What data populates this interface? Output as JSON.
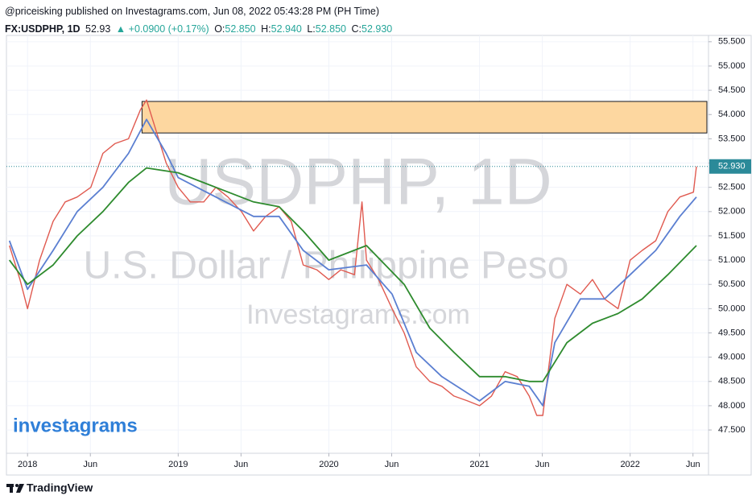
{
  "chart_data": {
    "type": "line",
    "published": "@priceisking published on Investagrams.com, Jun 08, 2022 05:43:28 PM (PH Time)",
    "header": {
      "symbol": "FX:USDPHP, 1D",
      "last": "52.93",
      "change": "▲ +0.0900 (+0.17%)",
      "o_label": "O:",
      "open": "52.850",
      "h_label": "H:",
      "high": "52.940",
      "l_label": "L:",
      "low": "52.850",
      "c_label": "C:",
      "close": "52.930"
    },
    "watermark": {
      "symbol": "USDPHP, 1D",
      "name": "U.S. Dollar / Philippine Peso",
      "site": "Investagrams.com"
    },
    "logo": "investagrams",
    "footer": "TradingView",
    "xlim": [
      2017.86,
      2022.52
    ],
    "ylim": [
      47.02,
      55.63
    ],
    "xticks": [
      {
        "value": 2018,
        "label": "2018"
      },
      {
        "value": 2018.417,
        "label": "Jun"
      },
      {
        "value": 2019,
        "label": "2019"
      },
      {
        "value": 2019.417,
        "label": "Jun"
      },
      {
        "value": 2020,
        "label": "2020"
      },
      {
        "value": 2020.417,
        "label": "Jun"
      },
      {
        "value": 2021,
        "label": "2021"
      },
      {
        "value": 2021.417,
        "label": "Jun"
      },
      {
        "value": 2022,
        "label": "2022"
      },
      {
        "value": 2022.417,
        "label": "Jun"
      }
    ],
    "yticks": [
      {
        "value": 47.5,
        "label": "47.500"
      },
      {
        "value": 48,
        "label": "48.000"
      },
      {
        "value": 48.5,
        "label": "48.500"
      },
      {
        "value": 49,
        "label": "49.000"
      },
      {
        "value": 49.5,
        "label": "49.500"
      },
      {
        "value": 50,
        "label": "50.000"
      },
      {
        "value": 50.5,
        "label": "50.500"
      },
      {
        "value": 51,
        "label": "51.000"
      },
      {
        "value": 51.5,
        "label": "51.500"
      },
      {
        "value": 52,
        "label": "52.000"
      },
      {
        "value": 52.5,
        "label": "52.500"
      },
      {
        "value": 53,
        "label": "53.000"
      },
      {
        "value": 53.5,
        "label": "53.500"
      },
      {
        "value": 54,
        "label": "54.000"
      },
      {
        "value": 54.5,
        "label": "54.500"
      },
      {
        "value": 55,
        "label": "55.000"
      },
      {
        "value": 55.5,
        "label": "55.500"
      }
    ],
    "grid": true,
    "last_price": {
      "value": 52.93,
      "label": "52.930",
      "color": "#2b8a99"
    },
    "zone": {
      "x": 2018.76,
      "low": 53.62,
      "high": 54.27,
      "fill": "#fdd7a0"
    },
    "series": [
      {
        "color": "#e05a50",
        "x": [
          2017.88,
          2017.95,
          2018.0,
          2018.08,
          2018.17,
          2018.25,
          2018.33,
          2018.42,
          2018.5,
          2018.58,
          2018.67,
          2018.75,
          2018.79,
          2018.83,
          2018.92,
          2019.0,
          2019.08,
          2019.17,
          2019.25,
          2019.33,
          2019.42,
          2019.5,
          2019.58,
          2019.67,
          2019.75,
          2019.83,
          2019.92,
          2020.0,
          2020.08,
          2020.17,
          2020.22,
          2020.25,
          2020.33,
          2020.42,
          2020.5,
          2020.58,
          2020.67,
          2020.75,
          2020.83,
          2020.92,
          2021.0,
          2021.08,
          2021.17,
          2021.25,
          2021.33,
          2021.38,
          2021.42,
          2021.5,
          2021.58,
          2021.67,
          2021.75,
          2021.83,
          2021.92,
          2022.0,
          2022.08,
          2022.17,
          2022.25,
          2022.33,
          2022.42,
          2022.44
        ],
        "values": [
          51.3,
          50.6,
          50.0,
          51.0,
          51.8,
          52.2,
          52.3,
          52.5,
          53.2,
          53.4,
          53.5,
          54.1,
          54.3,
          53.9,
          53.0,
          52.5,
          52.2,
          52.2,
          52.5,
          52.3,
          52.0,
          51.6,
          51.9,
          52.1,
          51.8,
          50.9,
          50.8,
          50.6,
          50.8,
          50.7,
          52.2,
          51.0,
          50.6,
          50.0,
          49.5,
          48.8,
          48.5,
          48.4,
          48.2,
          48.1,
          48.0,
          48.2,
          48.7,
          48.6,
          48.2,
          47.8,
          47.8,
          49.8,
          50.5,
          50.3,
          50.6,
          50.2,
          50.0,
          51.0,
          51.2,
          51.4,
          52.0,
          52.3,
          52.4,
          52.93
        ]
      },
      {
        "color": "#5b7fd1",
        "x": [
          2017.88,
          2018.0,
          2018.17,
          2018.33,
          2018.5,
          2018.67,
          2018.79,
          2018.92,
          2019.0,
          2019.25,
          2019.5,
          2019.67,
          2019.83,
          2020.0,
          2020.25,
          2020.42,
          2020.58,
          2020.75,
          2021.0,
          2021.17,
          2021.33,
          2021.42,
          2021.5,
          2021.67,
          2021.83,
          2022.0,
          2022.17,
          2022.33,
          2022.44
        ],
        "values": [
          51.4,
          50.4,
          51.2,
          52.0,
          52.5,
          53.2,
          53.9,
          53.2,
          52.7,
          52.3,
          51.9,
          51.9,
          51.2,
          50.8,
          50.9,
          50.3,
          49.1,
          48.6,
          48.1,
          48.5,
          48.4,
          48.0,
          49.3,
          50.2,
          50.2,
          50.7,
          51.2,
          51.9,
          52.3
        ]
      },
      {
        "color": "#2e8b2e",
        "x": [
          2017.88,
          2018.0,
          2018.17,
          2018.33,
          2018.5,
          2018.67,
          2018.79,
          2019.0,
          2019.25,
          2019.5,
          2019.67,
          2019.83,
          2020.0,
          2020.25,
          2020.5,
          2020.67,
          2020.83,
          2021.0,
          2021.17,
          2021.33,
          2021.42,
          2021.58,
          2021.75,
          2021.92,
          2022.08,
          2022.25,
          2022.44
        ],
        "values": [
          51.0,
          50.5,
          50.9,
          51.5,
          52.0,
          52.6,
          52.9,
          52.8,
          52.5,
          52.2,
          52.1,
          51.6,
          51.0,
          51.3,
          50.5,
          49.6,
          49.1,
          48.6,
          48.6,
          48.5,
          48.5,
          49.3,
          49.7,
          49.9,
          50.2,
          50.7,
          51.3
        ]
      }
    ]
  }
}
